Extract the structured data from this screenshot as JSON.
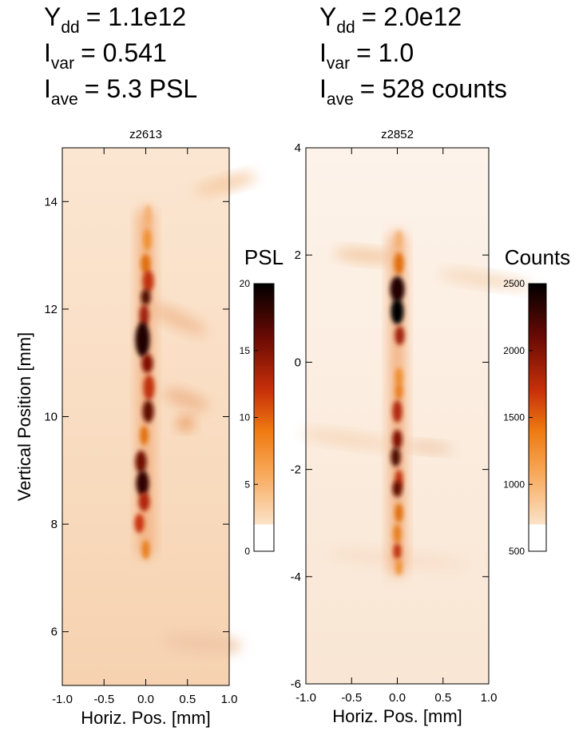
{
  "chart_data": [
    {
      "type": "image",
      "title": "z2613",
      "annotations": [
        {
          "symbol": "Y",
          "subscript": "dd",
          "text": "= 1.1e12"
        },
        {
          "symbol": "I",
          "subscript": "var",
          "text": "= 0.541"
        },
        {
          "symbol": "I",
          "subscript": "ave",
          "text": "= 5.3 PSL"
        }
      ],
      "xlabel": "Horiz. Pos. [mm]",
      "ylabel": "Vertical Position [mm]",
      "xlim": [
        -1,
        1
      ],
      "xticks": [
        {
          "value": -1,
          "label": "-1.0"
        },
        {
          "value": -0.5,
          "label": "-0.5"
        },
        {
          "value": 0,
          "label": "0.0"
        },
        {
          "value": 0.5,
          "label": "0.5"
        },
        {
          "value": 1,
          "label": "1.0"
        }
      ],
      "ylim": [
        5,
        15
      ],
      "yticks": [
        6,
        8,
        10,
        12,
        14
      ],
      "colorbar": {
        "label": "PSL",
        "lim": [
          0,
          20
        ],
        "ticks": [
          0,
          5,
          10,
          15,
          20
        ]
      }
    },
    {
      "type": "image",
      "title": "z2852",
      "annotations": [
        {
          "symbol": "Y",
          "subscript": "dd",
          "text": "= 2.0e12"
        },
        {
          "symbol": "I",
          "subscript": "var",
          "text": "= 1.0"
        },
        {
          "symbol": "I",
          "subscript": "ave",
          "text": "= 528 counts"
        }
      ],
      "xlabel": "Horiz. Pos. [mm]",
      "xlim": [
        -1,
        1
      ],
      "xticks": [
        {
          "value": -1,
          "label": "-1.0"
        },
        {
          "value": -0.5,
          "label": "-0.5"
        },
        {
          "value": 0,
          "label": "0.0"
        },
        {
          "value": 0.5,
          "label": "0.5"
        },
        {
          "value": 1,
          "label": "1.0"
        }
      ],
      "ylim": [
        -6,
        4
      ],
      "yticks": [
        -6,
        -4,
        -2,
        0,
        2,
        4
      ],
      "colorbar": {
        "label": "Counts",
        "lim": [
          500,
          2500
        ],
        "ticks": [
          500,
          1000,
          1500,
          2000,
          2500
        ]
      }
    }
  ]
}
